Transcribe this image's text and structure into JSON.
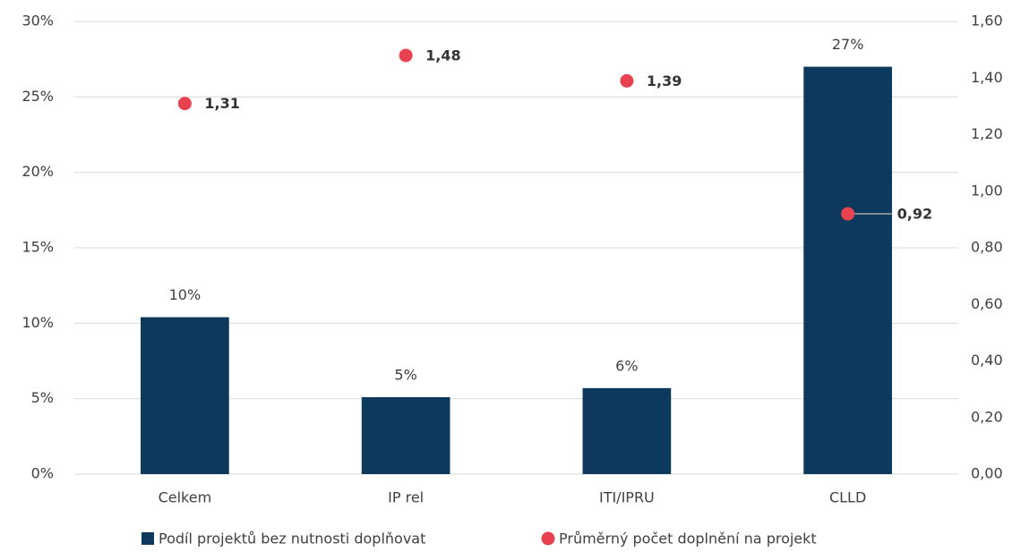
{
  "chart_data": {
    "type": "bar",
    "categories": [
      "Celkem",
      "IP rel",
      "ITI/IPRU",
      "CLLD"
    ],
    "series": [
      {
        "name": "Podíl projektů bez nutnosti doplňovat",
        "type": "bar",
        "color": "#0d3a5c",
        "values": [
          10.4,
          5.1,
          5.7,
          27.0
        ],
        "value_labels": [
          "10%",
          "5%",
          "6%",
          "27%"
        ]
      },
      {
        "name": "Průměrný počet doplnění na projekt",
        "type": "scatter",
        "axis": "y2",
        "color": "#e8414f",
        "values": [
          1.31,
          1.48,
          1.39,
          0.92
        ],
        "value_labels": [
          "1,31",
          "1,48",
          "1,39",
          "0,92"
        ]
      }
    ],
    "ylim": [
      0,
      30
    ],
    "yticks": [
      {
        "value": 0,
        "label": "0%"
      },
      {
        "value": 5,
        "label": "5%"
      },
      {
        "value": 10,
        "label": "10%"
      },
      {
        "value": 15,
        "label": "15%"
      },
      {
        "value": 20,
        "label": "20%"
      },
      {
        "value": 25,
        "label": "25%"
      },
      {
        "value": 30,
        "label": "30%"
      }
    ],
    "y2lim": [
      0,
      1.6
    ],
    "y2ticks": [
      {
        "value": 0,
        "label": "0,00"
      },
      {
        "value": 0.2,
        "label": "0,20"
      },
      {
        "value": 0.4,
        "label": "0,40"
      },
      {
        "value": 0.6,
        "label": "0,60"
      },
      {
        "value": 0.8,
        "label": "0,80"
      },
      {
        "value": 1.0,
        "label": "1,00"
      },
      {
        "value": 1.2,
        "label": "1,20"
      },
      {
        "value": 1.4,
        "label": "1,40"
      },
      {
        "value": 1.6,
        "label": "1,60"
      }
    ],
    "grid": true,
    "legend": "bottom"
  }
}
